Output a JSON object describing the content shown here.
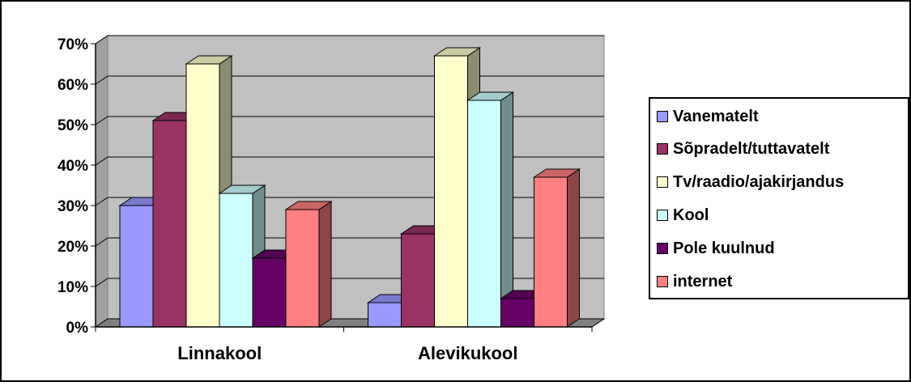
{
  "chart_data": {
    "type": "bar",
    "categories": [
      "Linnakool",
      "Alevikukool"
    ],
    "series": [
      {
        "name": "Vanematelt",
        "values": [
          30,
          6
        ],
        "color": "#9999ff"
      },
      {
        "name": "Sõpradelt/tuttavatelt",
        "values": [
          51,
          23
        ],
        "color": "#993366"
      },
      {
        "name": "Tv/raadio/ajakirjandus",
        "values": [
          65,
          67
        ],
        "color": "#ffffcc"
      },
      {
        "name": "Kool",
        "values": [
          33,
          56
        ],
        "color": "#ccffff"
      },
      {
        "name": "Pole kuulnud",
        "values": [
          17,
          7
        ],
        "color": "#660066"
      },
      {
        "name": "internet",
        "values": [
          29,
          37
        ],
        "color": "#ff8080"
      }
    ],
    "yticks": [
      "0%",
      "10%",
      "20%",
      "30%",
      "40%",
      "50%",
      "60%",
      "70%"
    ],
    "ylim": [
      0,
      70
    ],
    "grid": true,
    "legend_position": "right",
    "three_d": true,
    "plot_background": "#c0c0c0"
  }
}
